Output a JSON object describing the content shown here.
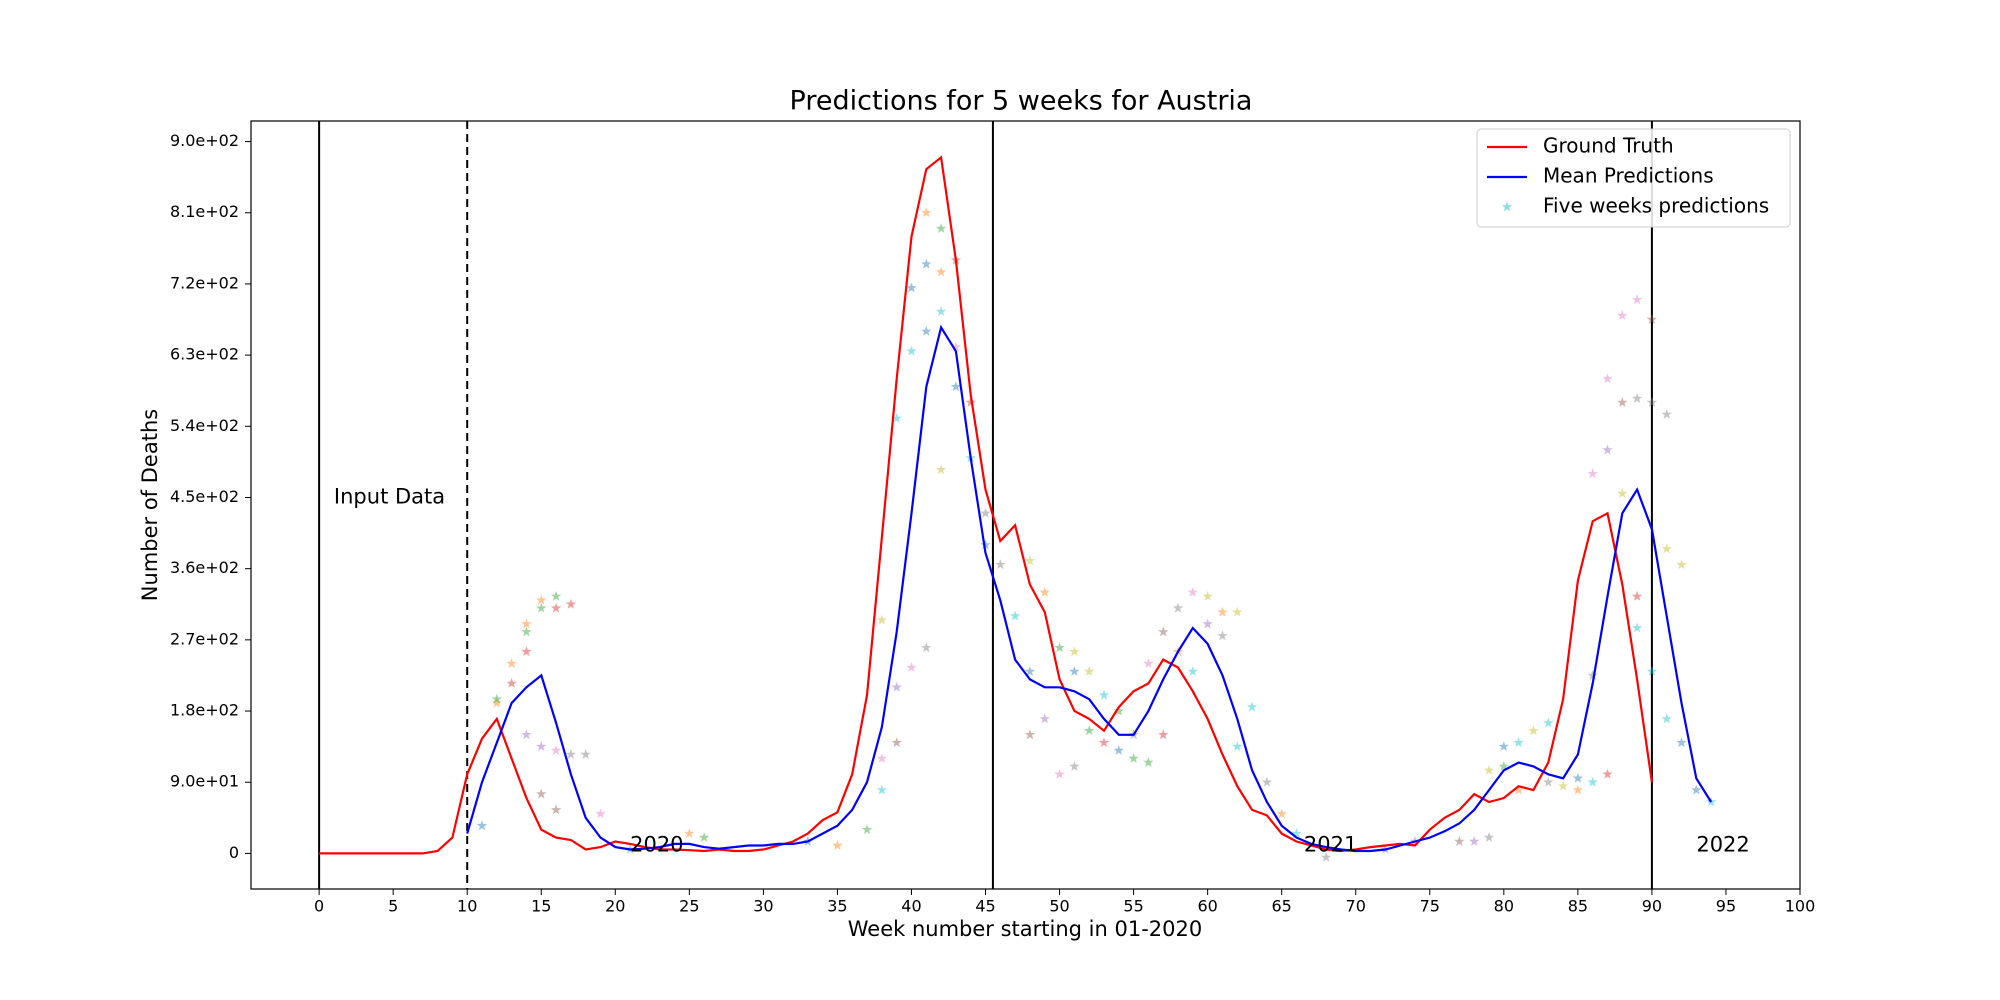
{
  "chart_data": {
    "type": "line",
    "title": "Predictions for 5 weeks for Austria",
    "x_label": "Week number starting in 01-2020",
    "y_label": "Number of Deaths",
    "xlim": [
      -4.6,
      100
    ],
    "ylim": [
      -45,
      926
    ],
    "xticks": [
      0,
      5,
      10,
      15,
      20,
      25,
      30,
      35,
      40,
      45,
      50,
      55,
      60,
      65,
      70,
      75,
      80,
      85,
      90,
      95,
      100
    ],
    "yticks": [
      0,
      {
        "value": 90,
        "label": "9.0e+01"
      },
      {
        "value": 180,
        "label": "1.8e+02"
      },
      {
        "value": 270,
        "label": "2.7e+02"
      },
      {
        "value": 360,
        "label": "3.6e+02"
      },
      {
        "value": 450,
        "label": "4.5e+02"
      },
      {
        "value": 540,
        "label": "5.4e+02"
      },
      {
        "value": 630,
        "label": "6.3e+02"
      },
      {
        "value": 720,
        "label": "7.2e+02"
      },
      {
        "value": 810,
        "label": "8.1e+02"
      },
      {
        "value": 900,
        "label": "9.0e+02"
      }
    ],
    "grid": false,
    "legend_position": "upper-right",
    "vlines": [
      0,
      45.5,
      90
    ],
    "dashed_vlines": [
      10
    ],
    "annotations": [
      {
        "text": "Input Data",
        "x": 1,
        "y": 450
      },
      {
        "text": "2020",
        "x": 21,
        "y": 10
      },
      {
        "text": "2021",
        "x": 66.5,
        "y": 10
      },
      {
        "text": "2022",
        "x": 93,
        "y": 10
      }
    ],
    "series": [
      {
        "name": "Ground Truth",
        "color": "#ff0000",
        "kind": "line",
        "x": [
          0,
          1,
          2,
          3,
          4,
          5,
          6,
          7,
          8,
          9,
          10,
          11,
          12,
          13,
          14,
          15,
          16,
          17,
          18,
          19,
          20,
          21,
          22,
          23,
          24,
          25,
          26,
          27,
          28,
          29,
          30,
          31,
          32,
          33,
          34,
          35,
          36,
          37,
          38,
          39,
          40,
          41,
          42,
          43,
          44,
          45,
          46,
          47,
          48,
          49,
          50,
          51,
          52,
          53,
          54,
          55,
          56,
          57,
          58,
          59,
          60,
          61,
          62,
          63,
          64,
          65,
          66,
          67,
          68,
          69,
          70,
          71,
          72,
          73,
          74,
          75,
          76,
          77,
          78,
          79,
          80,
          81,
          82,
          83,
          84,
          85,
          86,
          87,
          88,
          89,
          90
        ],
        "values": [
          0,
          0,
          0,
          0,
          0,
          0,
          0,
          0,
          3,
          20,
          100,
          145,
          170,
          120,
          70,
          30,
          20,
          17,
          5,
          8,
          15,
          12,
          8,
          5,
          5,
          4,
          3,
          5,
          3,
          3,
          5,
          10,
          15,
          25,
          42,
          52,
          100,
          200,
          400,
          600,
          780,
          865,
          880,
          750,
          580,
          460,
          395,
          415,
          340,
          305,
          220,
          180,
          170,
          155,
          185,
          205,
          215,
          245,
          235,
          205,
          170,
          125,
          85,
          55,
          48,
          25,
          15,
          10,
          5,
          3,
          5,
          8,
          10,
          12,
          10,
          30,
          45,
          55,
          75,
          65,
          70,
          85,
          80,
          115,
          195,
          345,
          420,
          430,
          340,
          220,
          90
        ]
      },
      {
        "name": "Mean Predictions",
        "color": "#0000ff",
        "kind": "line",
        "x": [
          10,
          11,
          12,
          13,
          14,
          15,
          16,
          17,
          18,
          19,
          20,
          21,
          22,
          23,
          24,
          25,
          26,
          27,
          28,
          29,
          30,
          31,
          32,
          33,
          34,
          35,
          36,
          37,
          38,
          39,
          40,
          41,
          42,
          43,
          44,
          45,
          46,
          47,
          48,
          49,
          50,
          51,
          52,
          53,
          54,
          55,
          56,
          57,
          58,
          59,
          60,
          61,
          62,
          63,
          64,
          65,
          66,
          67,
          68,
          69,
          70,
          71,
          72,
          73,
          74,
          75,
          76,
          77,
          78,
          79,
          80,
          81,
          82,
          83,
          84,
          85,
          86,
          87,
          88,
          89,
          90,
          91,
          92,
          93,
          94
        ],
        "values": [
          25,
          90,
          140,
          190,
          210,
          225,
          165,
          100,
          45,
          20,
          8,
          5,
          6,
          8,
          12,
          12,
          8,
          6,
          8,
          10,
          10,
          12,
          12,
          15,
          25,
          35,
          55,
          90,
          160,
          280,
          430,
          590,
          665,
          635,
          500,
          380,
          320,
          245,
          220,
          210,
          210,
          205,
          195,
          170,
          150,
          150,
          180,
          220,
          255,
          285,
          265,
          225,
          170,
          105,
          65,
          35,
          20,
          12,
          8,
          5,
          3,
          3,
          5,
          10,
          15,
          20,
          28,
          38,
          55,
          80,
          105,
          115,
          110,
          100,
          95,
          125,
          215,
          325,
          430,
          460,
          410,
          300,
          190,
          95,
          65
        ]
      },
      {
        "name": "Five weeks predictions",
        "color": "#17becf",
        "kind": "scatter",
        "x": [
          11,
          12,
          12,
          13,
          13,
          14,
          14,
          14,
          14,
          15,
          15,
          15,
          15,
          16,
          16,
          16,
          16,
          17,
          17,
          18,
          19,
          21,
          25,
          26,
          33,
          35,
          37,
          38,
          38,
          38,
          39,
          39,
          39,
          40,
          40,
          40,
          41,
          41,
          41,
          41,
          42,
          42,
          42,
          42,
          43,
          43,
          43,
          44,
          44,
          45,
          45,
          46,
          47,
          48,
          48,
          48,
          49,
          49,
          50,
          50,
          51,
          51,
          51,
          52,
          52,
          53,
          53,
          54,
          54,
          55,
          55,
          56,
          56,
          57,
          57,
          58,
          58,
          59,
          59,
          60,
          60,
          61,
          61,
          62,
          62,
          63,
          64,
          65,
          66,
          68,
          72,
          74,
          77,
          78,
          79,
          79,
          80,
          80,
          81,
          81,
          82,
          83,
          83,
          84,
          85,
          85,
          86,
          86,
          86,
          87,
          87,
          87,
          88,
          88,
          88,
          89,
          89,
          89,
          89,
          90,
          90,
          90,
          91,
          91,
          91,
          92,
          92,
          93,
          94
        ],
        "values": [
          35,
          190,
          195,
          240,
          215,
          290,
          280,
          255,
          150,
          320,
          310,
          135,
          75,
          325,
          310,
          130,
          55,
          315,
          125,
          125,
          50,
          5,
          25,
          20,
          15,
          10,
          30,
          80,
          120,
          295,
          210,
          140,
          550,
          635,
          715,
          235,
          260,
          660,
          745,
          810,
          790,
          735,
          685,
          485,
          750,
          640,
          590,
          570,
          500,
          430,
          390,
          365,
          300,
          370,
          230,
          150,
          330,
          170,
          260,
          100,
          255,
          230,
          110,
          230,
          155,
          200,
          140,
          180,
          130,
          150,
          120,
          240,
          115,
          280,
          150,
          310,
          255,
          330,
          230,
          325,
          290,
          305,
          275,
          305,
          135,
          185,
          90,
          50,
          25,
          -5,
          5,
          15,
          15,
          15,
          20,
          105,
          135,
          110,
          140,
          80,
          155,
          165,
          90,
          85,
          80,
          95,
          90,
          480,
          225,
          600,
          510,
          100,
          680,
          570,
          455,
          700,
          575,
          325,
          285,
          675,
          570,
          230,
          555,
          385,
          170,
          365,
          140,
          80,
          65
        ],
        "point_colors": [
          "#1f77b4",
          "#ff7f0e",
          "#2ca02c",
          "#ff7f0e",
          "#d62728",
          "#ff7f0e",
          "#2ca02c",
          "#d62728",
          "#9467bd",
          "#ff7f0e",
          "#2ca02c",
          "#9467bd",
          "#8c564b",
          "#2ca02c",
          "#d62728",
          "#e377c2",
          "#8c564b",
          "#d62728",
          "#7f7f7f",
          "#7f7f7f",
          "#e377c2",
          "#17becf",
          "#ff7f0e",
          "#2ca02c",
          "#1f77b4",
          "#ff7f0e",
          "#2ca02c",
          "#17becf",
          "#e377c2",
          "#bcbd22",
          "#9467bd",
          "#8c564b",
          "#17becf",
          "#17becf",
          "#1f77b4",
          "#e377c2",
          "#7f7f7f",
          "#1f77b4",
          "#1f77b4",
          "#ff7f0e",
          "#2ca02c",
          "#ff7f0e",
          "#17becf",
          "#bcbd22",
          "#d62728",
          "#e377c2",
          "#1f77b4",
          "#d62728",
          "#17becf",
          "#7f7f7f",
          "#1f77b4",
          "#7f7f7f",
          "#17becf",
          "#bcbd22",
          "#1f77b4",
          "#8c564b",
          "#ff7f0e",
          "#9467bd",
          "#2ca02c",
          "#e377c2",
          "#bcbd22",
          "#1f77b4",
          "#7f7f7f",
          "#bcbd22",
          "#2ca02c",
          "#17becf",
          "#d62728",
          "#2ca02c",
          "#1f77b4",
          "#9467bd",
          "#2ca02c",
          "#e377c2",
          "#2ca02c",
          "#8c564b",
          "#d62728",
          "#7f7f7f",
          "#ff7f0e",
          "#e377c2",
          "#17becf",
          "#bcbd22",
          "#9467bd",
          "#ff7f0e",
          "#7f7f7f",
          "#bcbd22",
          "#17becf",
          "#17becf",
          "#7f7f7f",
          "#ff7f0e",
          "#17becf",
          "#7f7f7f",
          "#9467bd",
          "#7f7f7f",
          "#8c564b",
          "#9467bd",
          "#7f7f7f",
          "#bcbd22",
          "#1f77b4",
          "#2ca02c",
          "#17becf",
          "#ff7f0e",
          "#bcbd22",
          "#17becf",
          "#7f7f7f",
          "#bcbd22",
          "#ff7f0e",
          "#1f77b4",
          "#17becf",
          "#e377c2",
          "#7f7f7f",
          "#e377c2",
          "#9467bd",
          "#d62728",
          "#e377c2",
          "#8c564b",
          "#bcbd22",
          "#e377c2",
          "#7f7f7f",
          "#d62728",
          "#17becf",
          "#8c564b",
          "#7f7f7f",
          "#17becf",
          "#7f7f7f",
          "#bcbd22",
          "#17becf",
          "#bcbd22",
          "#1f77b4",
          "#1f77b4",
          "#17becf"
        ]
      }
    ]
  }
}
